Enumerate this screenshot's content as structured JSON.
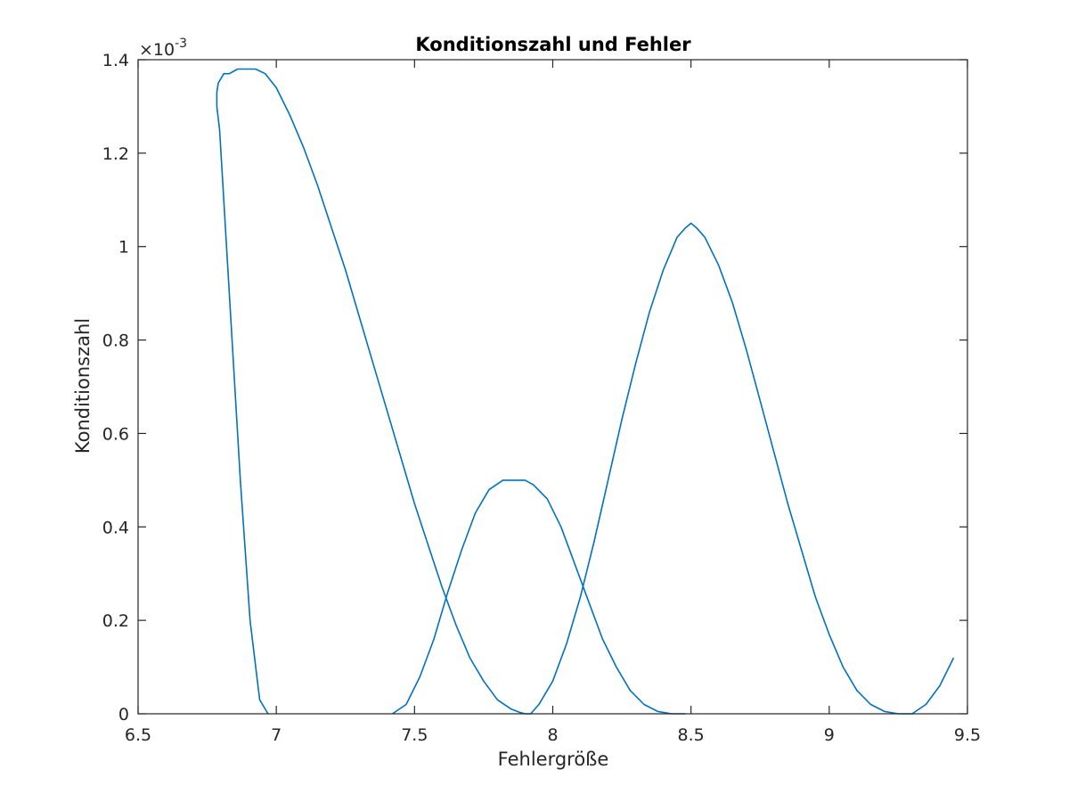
{
  "chart_data": {
    "type": "line",
    "title": "Konditionszahl und Fehler",
    "xlabel": "Fehlergröße",
    "ylabel": "Konditionszahl",
    "xlim": [
      6.5,
      9.5
    ],
    "ylim": [
      0,
      0.0014
    ],
    "x_ticks": [
      6.5,
      7,
      7.5,
      8,
      8.5,
      9,
      9.5
    ],
    "x_tick_labels": [
      "6.5",
      "7",
      "7.5",
      "8",
      "8.5",
      "9",
      "9.5"
    ],
    "y_ticks": [
      0,
      0.0002,
      0.0004,
      0.0006,
      0.0008,
      0.001,
      0.0012,
      0.0014
    ],
    "y_tick_labels": [
      "0",
      "0.2",
      "0.4",
      "0.6",
      "0.8",
      "1",
      "1.2",
      "1.4"
    ],
    "y_exponent": {
      "base": "×10",
      "power": "-3"
    },
    "grid": false,
    "line_color": "#0072BD",
    "series": [
      {
        "x": [
          6.97,
          6.94,
          6.905,
          6.87,
          6.84,
          6.81,
          6.795,
          6.785,
          6.785,
          6.79,
          6.8,
          6.81,
          6.83,
          6.86,
          6.89,
          6.925,
          6.96,
          7.0,
          7.05,
          7.1,
          7.15,
          7.2,
          7.25,
          7.3,
          7.35,
          7.4,
          7.45,
          7.5,
          7.55,
          7.6,
          7.65,
          7.7,
          7.75,
          7.8,
          7.85,
          7.88,
          7.9,
          7.92,
          7.95,
          8.0,
          8.05,
          8.1,
          8.15,
          8.2,
          8.25,
          8.3,
          8.35,
          8.4,
          8.45,
          8.48,
          8.5,
          8.52,
          8.55,
          8.6,
          8.65,
          8.7,
          8.75,
          8.8,
          8.85,
          8.9,
          8.95,
          9.0,
          9.05,
          9.1,
          9.15,
          9.2,
          9.25,
          9.3,
          9.35,
          9.4,
          9.45
        ],
        "y": [
          0.0,
          3e-05,
          0.0002,
          0.0005,
          0.0008,
          0.0011,
          0.00125,
          0.0013,
          0.00133,
          0.00135,
          0.00136,
          0.00137,
          0.00137,
          0.00138,
          0.00138,
          0.00138,
          0.00137,
          0.00134,
          0.00128,
          0.00121,
          0.00113,
          0.00104,
          0.00095,
          0.00085,
          0.00075,
          0.00065,
          0.00055,
          0.00045,
          0.00036,
          0.00027,
          0.00019,
          0.00012,
          7e-05,
          3e-05,
          1e-05,
          3e-06,
          0.0,
          0.0,
          2e-05,
          7e-05,
          0.00015,
          0.00025,
          0.00037,
          0.0005,
          0.00063,
          0.00075,
          0.00086,
          0.00095,
          0.00102,
          0.00104,
          0.00105,
          0.00104,
          0.00102,
          0.00096,
          0.00088,
          0.00078,
          0.00067,
          0.00056,
          0.00045,
          0.00035,
          0.00025,
          0.00017,
          0.0001,
          5e-05,
          2e-05,
          5e-06,
          0.0,
          0.0,
          2e-05,
          6e-05,
          0.00012
        ]
      },
      {
        "x": [
          7.42,
          7.47,
          7.52,
          7.57,
          7.62,
          7.67,
          7.72,
          7.77,
          7.82,
          7.87,
          7.9,
          7.93,
          7.98,
          8.03,
          8.08,
          8.13,
          8.18,
          8.23,
          8.28,
          8.33,
          8.38,
          8.43,
          8.48
        ],
        "y": [
          0.0,
          2e-05,
          8e-05,
          0.00016,
          0.00026,
          0.00035,
          0.00043,
          0.00048,
          0.0005,
          0.0005,
          0.0005,
          0.00049,
          0.00046,
          0.0004,
          0.00032,
          0.00024,
          0.00016,
          0.0001,
          5e-05,
          2e-05,
          5e-06,
          0.0,
          0.0
        ]
      }
    ]
  }
}
